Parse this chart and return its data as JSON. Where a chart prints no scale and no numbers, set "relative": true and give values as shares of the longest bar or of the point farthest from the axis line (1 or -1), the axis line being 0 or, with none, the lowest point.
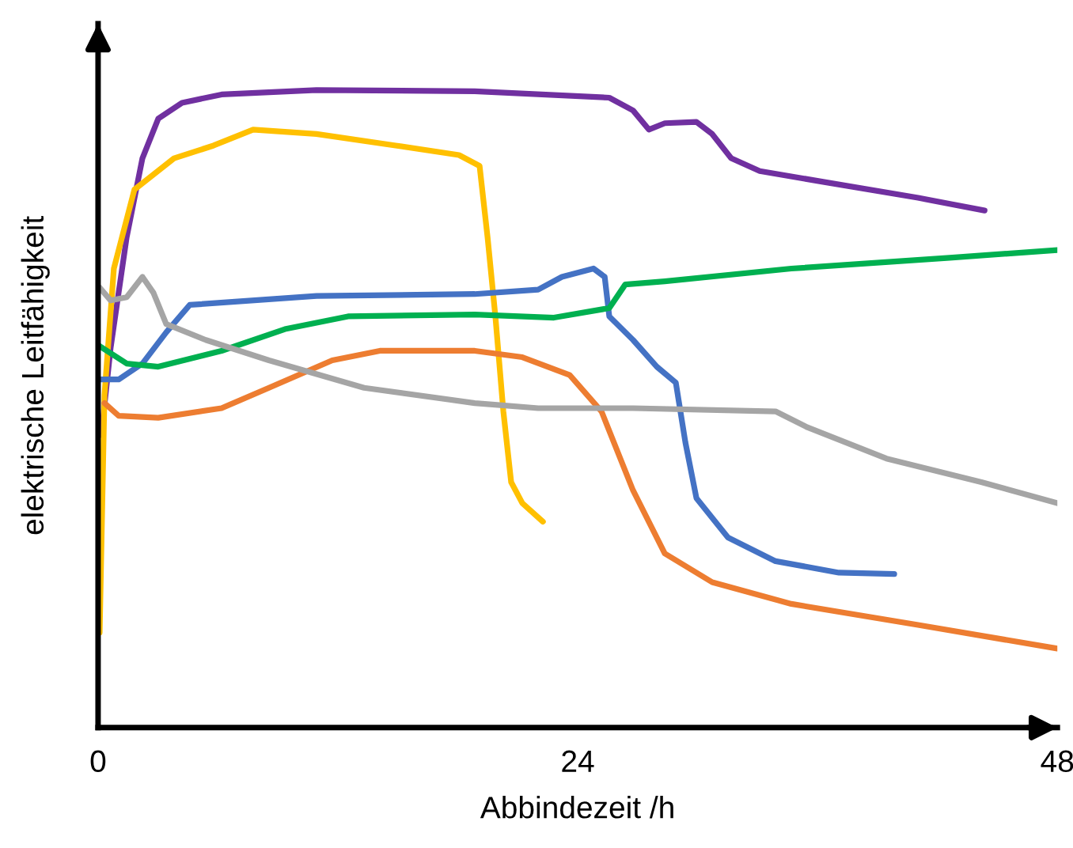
{
  "chart_data": {
    "type": "line",
    "relative": true,
    "xlabel": "Abbindezeit /h",
    "ylabel": "elektrische Leitfähigkeit",
    "xlim": [
      0,
      48
    ],
    "xticks": [
      0,
      24,
      48
    ],
    "grid": false,
    "marker": "none",
    "line_style": "solid",
    "series": [
      {
        "color": "#7030a0",
        "x": [
          0.16,
          0.63,
          1.43,
          2.22,
          3.01,
          4.2,
          6.18,
          10.93,
          18.85,
          25.58,
          26.77,
          27.56,
          28.36,
          29.94,
          30.73,
          31.68,
          33.11,
          36.28,
          41.03,
          44.36
        ],
        "values": [
          0.459,
          0.596,
          0.769,
          0.893,
          0.955,
          0.98,
          0.993,
          1.0,
          0.998,
          0.988,
          0.968,
          0.938,
          0.948,
          0.95,
          0.931,
          0.893,
          0.873,
          0.856,
          0.831,
          0.811
        ]
      },
      {
        "color": "#ffc000",
        "x": [
          0.08,
          0.32,
          0.79,
          1.82,
          3.8,
          5.78,
          7.76,
          10.93,
          14.89,
          18.06,
          19.09,
          19.49,
          19.88,
          20.28,
          20.67,
          21.23,
          22.26
        ],
        "values": [
          0.149,
          0.521,
          0.72,
          0.844,
          0.893,
          0.913,
          0.938,
          0.931,
          0.913,
          0.898,
          0.881,
          0.769,
          0.645,
          0.496,
          0.385,
          0.352,
          0.323
        ]
      },
      {
        "color": "#4472c4",
        "x": [
          0.16,
          1.03,
          2.22,
          3.41,
          4.59,
          10.93,
          18.85,
          22.02,
          23.21,
          24.79,
          25.35,
          25.58,
          26.77,
          27.96,
          28.91,
          29.39,
          29.94,
          31.52,
          33.9,
          37.07,
          39.84
        ],
        "values": [
          0.546,
          0.546,
          0.571,
          0.62,
          0.663,
          0.677,
          0.68,
          0.687,
          0.707,
          0.72,
          0.707,
          0.645,
          0.608,
          0.566,
          0.541,
          0.447,
          0.36,
          0.298,
          0.261,
          0.243,
          0.241
        ]
      },
      {
        "color": "#00b050",
        "x": [
          0.0,
          1.43,
          3.01,
          6.18,
          9.35,
          12.51,
          18.85,
          22.81,
          25.58,
          26.38,
          28.36,
          34.69,
          42.61,
          48.0
        ],
        "values": [
          0.6,
          0.571,
          0.566,
          0.591,
          0.625,
          0.645,
          0.648,
          0.643,
          0.658,
          0.695,
          0.7,
          0.72,
          0.737,
          0.749
        ]
      },
      {
        "color": "#ed7d31",
        "x": [
          0.32,
          1.03,
          3.01,
          6.18,
          8.55,
          11.72,
          14.1,
          18.85,
          21.23,
          23.6,
          25.19,
          26.77,
          28.36,
          30.73,
          34.69,
          41.03,
          48.0
        ],
        "values": [
          0.509,
          0.489,
          0.486,
          0.501,
          0.533,
          0.576,
          0.591,
          0.591,
          0.581,
          0.553,
          0.496,
          0.372,
          0.273,
          0.228,
          0.194,
          0.161,
          0.124
        ]
      },
      {
        "color": "#a5a5a5",
        "x": [
          0.08,
          0.63,
          1.43,
          2.22,
          2.77,
          3.41,
          5.39,
          8.55,
          13.31,
          18.85,
          22.02,
          26.77,
          33.9,
          35.49,
          39.45,
          44.2,
          48.0
        ],
        "values": [
          0.69,
          0.67,
          0.675,
          0.707,
          0.682,
          0.633,
          0.608,
          0.576,
          0.533,
          0.509,
          0.501,
          0.501,
          0.496,
          0.471,
          0.422,
          0.385,
          0.352
        ]
      }
    ]
  }
}
